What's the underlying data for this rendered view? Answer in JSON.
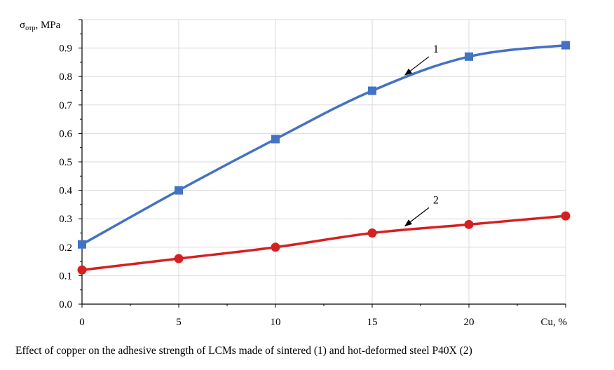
{
  "chart_data": {
    "type": "line",
    "ylabel_main": "σ",
    "ylabel_sub": "отр",
    "ylabel_unit": ", MPa",
    "xlabel": "Cu, %",
    "x": [
      0,
      5,
      10,
      15,
      20,
      25
    ],
    "x_ticks": [
      0,
      5,
      10,
      15,
      20
    ],
    "y_ticks": [
      "0.0",
      "0.1",
      "0.2",
      "0.3",
      "0.4",
      "0.5",
      "0.6",
      "0.7",
      "0.8",
      "0.9"
    ],
    "xlim": [
      0,
      25
    ],
    "ylim": [
      0,
      1.0
    ],
    "grid": true,
    "series": [
      {
        "name": "1",
        "color": "#4472C4",
        "marker": "square",
        "values": [
          0.21,
          0.4,
          0.58,
          0.75,
          0.87,
          0.91
        ]
      },
      {
        "name": "2",
        "color": "#D62020",
        "marker": "circle",
        "values": [
          0.12,
          0.16,
          0.2,
          0.25,
          0.28,
          0.31
        ]
      }
    ],
    "annotations": [
      {
        "text": "1",
        "series": 0,
        "x": 16.7
      },
      {
        "text": "2",
        "series": 1,
        "x": 16.7
      }
    ]
  },
  "caption": "Effect of copper on the adhesive strength of LCMs made of sintered (1) and hot-deformed steel P40X (2)"
}
